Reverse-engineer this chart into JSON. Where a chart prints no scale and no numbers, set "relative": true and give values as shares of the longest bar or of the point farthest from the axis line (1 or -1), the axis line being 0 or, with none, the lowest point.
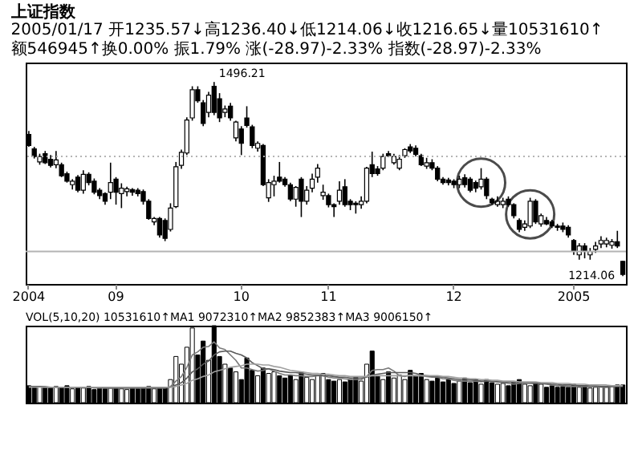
{
  "chart_data": [
    {
      "type": "candlestick",
      "title": "上证指数",
      "subtitle": "2005/01/17 开1235.57↓高1236.40↓低1214.06↓收1216.65↓量10531610↑额546945↑换0.00% 振1.79% 涨(-28.97)-2.33% 指数(-28.97)-2.33%",
      "categories": [
        "2004",
        null,
        null,
        null,
        null,
        null,
        null,
        null,
        null,
        null,
        null,
        null,
        null,
        null,
        null,
        null,
        "09",
        null,
        null,
        null,
        null,
        null,
        null,
        null,
        null,
        null,
        null,
        null,
        null,
        null,
        null,
        null,
        null,
        null,
        null,
        null,
        null,
        null,
        null,
        "10",
        null,
        null,
        null,
        null,
        null,
        null,
        null,
        null,
        null,
        null,
        null,
        null,
        null,
        null,
        null,
        "11",
        null,
        null,
        null,
        null,
        null,
        null,
        null,
        null,
        null,
        null,
        null,
        null,
        null,
        null,
        null,
        null,
        null,
        null,
        null,
        null,
        null,
        null,
        "12",
        null,
        null,
        null,
        null,
        null,
        null,
        null,
        null,
        null,
        null,
        null,
        null,
        null,
        null,
        null,
        null,
        null,
        null,
        null,
        null,
        null,
        "2005",
        null,
        null,
        null,
        null,
        null,
        null,
        null,
        null,
        null
      ],
      "ohlc": [
        [
          1420,
          1425,
          1402,
          1404
        ],
        [
          1399,
          1402,
          1385,
          1388
        ],
        [
          1380,
          1392,
          1376,
          1388
        ],
        [
          1392,
          1396,
          1377,
          1379
        ],
        [
          1384,
          1390,
          1372,
          1375
        ],
        [
          1376,
          1396,
          1371,
          1383
        ],
        [
          1376,
          1379,
          1358,
          1360
        ],
        [
          1363,
          1366,
          1350,
          1352
        ],
        [
          1347,
          1355,
          1340,
          1352
        ],
        [
          1358,
          1361,
          1336,
          1339
        ],
        [
          1339,
          1368,
          1334,
          1362
        ],
        [
          1362,
          1365,
          1346,
          1350
        ],
        [
          1352,
          1356,
          1333,
          1336
        ],
        [
          1339,
          1342,
          1326,
          1331
        ],
        [
          1334,
          1336,
          1318,
          1323
        ],
        [
          1336,
          1379,
          1326,
          1350
        ],
        [
          1355,
          1358,
          1318,
          1336
        ],
        [
          1334,
          1349,
          1313,
          1342
        ],
        [
          1337,
          1344,
          1330,
          1341
        ],
        [
          1340,
          1342,
          1331,
          1336
        ],
        [
          1339,
          1342,
          1330,
          1334
        ],
        [
          1337,
          1340,
          1318,
          1323
        ],
        [
          1323,
          1326,
          1296,
          1298
        ],
        [
          1293,
          1300,
          1288,
          1298
        ],
        [
          1298,
          1300,
          1270,
          1274
        ],
        [
          1295,
          1298,
          1265,
          1269
        ],
        [
          1282,
          1320,
          1279,
          1313
        ],
        [
          1315,
          1380,
          1313,
          1373
        ],
        [
          1375,
          1398,
          1370,
          1394
        ],
        [
          1393,
          1445,
          1390,
          1441
        ],
        [
          1444,
          1490,
          1440,
          1485
        ],
        [
          1485,
          1490,
          1466,
          1469
        ],
        [
          1466,
          1470,
          1432,
          1436
        ],
        [
          1452,
          1482,
          1445,
          1477
        ],
        [
          1490,
          1496.21,
          1448,
          1452
        ],
        [
          1472,
          1480,
          1438,
          1444
        ],
        [
          1452,
          1462,
          1445,
          1457
        ],
        [
          1461,
          1466,
          1440,
          1444
        ],
        [
          1415,
          1440,
          1410,
          1438
        ],
        [
          1428,
          1432,
          1390,
          1407
        ],
        [
          1444,
          1461,
          1430,
          1433
        ],
        [
          1431,
          1434,
          1400,
          1404
        ],
        [
          1400,
          1410,
          1395,
          1407
        ],
        [
          1404,
          1406,
          1345,
          1347
        ],
        [
          1328,
          1355,
          1322,
          1350
        ],
        [
          1347,
          1360,
          1330,
          1352
        ],
        [
          1358,
          1380,
          1350,
          1352
        ],
        [
          1355,
          1358,
          1344,
          1347
        ],
        [
          1347,
          1350,
          1323,
          1326
        ],
        [
          1326,
          1345,
          1315,
          1343
        ],
        [
          1355,
          1358,
          1300,
          1323
        ],
        [
          1323,
          1345,
          1318,
          1339
        ],
        [
          1342,
          1363,
          1336,
          1355
        ],
        [
          1358,
          1377,
          1350,
          1371
        ],
        [
          1331,
          1347,
          1325,
          1336
        ],
        [
          1331,
          1334,
          1314,
          1318
        ],
        [
          1318,
          1320,
          1300,
          1315
        ],
        [
          1323,
          1352,
          1318,
          1339
        ],
        [
          1344,
          1355,
          1315,
          1318
        ],
        [
          1323,
          1326,
          1310,
          1318
        ],
        [
          1320,
          1323,
          1305,
          1318
        ],
        [
          1318,
          1330,
          1312,
          1323
        ],
        [
          1323,
          1373,
          1320,
          1371
        ],
        [
          1376,
          1395,
          1358,
          1363
        ],
        [
          1370,
          1374,
          1360,
          1363
        ],
        [
          1371,
          1392,
          1368,
          1388
        ],
        [
          1392,
          1396,
          1387,
          1389
        ],
        [
          1379,
          1392,
          1376,
          1388
        ],
        [
          1371,
          1390,
          1368,
          1384
        ],
        [
          1389,
          1400,
          1386,
          1398
        ],
        [
          1402,
          1406,
          1393,
          1396
        ],
        [
          1400,
          1404,
          1388,
          1391
        ],
        [
          1389,
          1392,
          1374,
          1376
        ],
        [
          1374,
          1386,
          1370,
          1379
        ],
        [
          1379,
          1384,
          1368,
          1371
        ],
        [
          1371,
          1374,
          1352,
          1355
        ],
        [
          1355,
          1358,
          1347,
          1350
        ],
        [
          1354,
          1357,
          1346,
          1350
        ],
        [
          1352,
          1355,
          1342,
          1347
        ],
        [
          1347,
          1360,
          1342,
          1355
        ],
        [
          1357,
          1362,
          1343,
          1347
        ],
        [
          1355,
          1358,
          1336,
          1339
        ],
        [
          1350,
          1353,
          1336,
          1342
        ],
        [
          1344,
          1371,
          1340,
          1355
        ],
        [
          1355,
          1358,
          1326,
          1331
        ],
        [
          1326,
          1328,
          1318,
          1321
        ],
        [
          1318,
          1330,
          1315,
          1323
        ],
        [
          1318,
          1328,
          1313,
          1323
        ],
        [
          1326,
          1330,
          1315,
          1318
        ],
        [
          1318,
          1320,
          1298,
          1302
        ],
        [
          1295,
          1298,
          1278,
          1282
        ],
        [
          1285,
          1295,
          1280,
          1290
        ],
        [
          1287,
          1328,
          1284,
          1323
        ],
        [
          1323,
          1326,
          1290,
          1293
        ],
        [
          1290,
          1305,
          1286,
          1302
        ],
        [
          1295,
          1300,
          1288,
          1290
        ],
        [
          1293,
          1296,
          1284,
          1287
        ],
        [
          1287,
          1290,
          1280,
          1285
        ],
        [
          1287,
          1292,
          1278,
          1282
        ],
        [
          1285,
          1288,
          1270,
          1274
        ],
        [
          1266,
          1268,
          1245,
          1250
        ],
        [
          1245,
          1262,
          1238,
          1258
        ],
        [
          1258,
          1262,
          1240,
          1250
        ],
        [
          1245,
          1255,
          1238,
          1250
        ],
        [
          1253,
          1264,
          1248,
          1258
        ],
        [
          1261,
          1272,
          1255,
          1266
        ],
        [
          1261,
          1270,
          1256,
          1266
        ],
        [
          1259,
          1268,
          1254,
          1264
        ],
        [
          1264,
          1280,
          1255,
          1258
        ],
        [
          1235.57,
          1236.4,
          1214.06,
          1216.65
        ]
      ],
      "ref_lines": [
        {
          "axis": "y",
          "value": 1388,
          "color": "#b4b4b4",
          "line_style": "dotted"
        },
        {
          "axis": "y",
          "value": 1250,
          "color": "#b4b4b4",
          "line_style": "solid"
        }
      ],
      "annotations": [
        "1496.21",
        "1214.06"
      ],
      "tick_labels": "x"
    },
    {
      "type": "bar",
      "title": "VOL(5,10,20) 10531610↑MA1 9072310↑MA2 9852383↑MA3 9006150↑",
      "relative": true,
      "tick_labels": false,
      "categories": [
        "2004",
        null,
        null,
        null,
        null,
        null,
        null,
        null,
        null,
        null,
        null,
        null,
        null,
        null,
        null,
        null,
        "09",
        null,
        null,
        null,
        null,
        null,
        null,
        null,
        null,
        null,
        null,
        null,
        null,
        null,
        null,
        null,
        null,
        null,
        null,
        null,
        null,
        null,
        null,
        "10",
        null,
        null,
        null,
        null,
        null,
        null,
        null,
        null,
        null,
        null,
        null,
        null,
        null,
        null,
        null,
        "11",
        null,
        null,
        null,
        null,
        null,
        null,
        null,
        null,
        null,
        null,
        null,
        null,
        null,
        null,
        null,
        null,
        null,
        null,
        null,
        null,
        null,
        null,
        "12",
        null,
        null,
        null,
        null,
        null,
        null,
        null,
        null,
        null,
        null,
        null,
        null,
        null,
        null,
        null,
        null,
        null,
        null,
        null,
        null,
        null,
        "2005",
        null,
        null,
        null,
        null,
        null,
        null,
        null,
        null,
        null
      ],
      "series": [
        {
          "type": "bar",
          "values": [
            0.22,
            0.2,
            0.21,
            0.2,
            0.19,
            0.21,
            0.2,
            0.22,
            0.18,
            0.2,
            0.19,
            0.21,
            0.17,
            0.2,
            0.18,
            0.19,
            0.2,
            0.18,
            0.17,
            0.19,
            0.18,
            0.2,
            0.21,
            0.18,
            0.2,
            0.19,
            0.3,
            0.6,
            0.5,
            0.72,
            0.97,
            0.62,
            0.8,
            0.55,
            1,
            0.6,
            0.5,
            0.45,
            0.4,
            0.3,
            0.58,
            0.42,
            0.35,
            0.45,
            0.38,
            0.4,
            0.35,
            0.32,
            0.36,
            0.3,
            0.4,
            0.33,
            0.3,
            0.35,
            0.38,
            0.3,
            0.28,
            0.3,
            0.27,
            0.3,
            0.33,
            0.28,
            0.5,
            0.67,
            0.35,
            0.3,
            0.4,
            0.32,
            0.36,
            0.3,
            0.42,
            0.35,
            0.38,
            0.3,
            0.28,
            0.32,
            0.27,
            0.3,
            0.25,
            0.28,
            0.32,
            0.26,
            0.3,
            0.24,
            0.3,
            0.26,
            0.24,
            0.25,
            0.22,
            0.26,
            0.3,
            0.24,
            0.22,
            0.26,
            0.24,
            0.2,
            0.22,
            0.2,
            0.21,
            0.2,
            0.24,
            0.2,
            0.22,
            0.19,
            0.2,
            0.21,
            0.2,
            0.22,
            0.23,
            0.23
          ],
          "colors": [
            "#000000",
            "#000000",
            "#ffffff",
            "#000000",
            "#000000",
            "#ffffff",
            "#000000",
            "#000000",
            "#ffffff",
            "#000000",
            "#ffffff",
            "#000000",
            "#000000",
            "#000000",
            "#000000",
            "#ffffff",
            "#000000",
            "#ffffff",
            "#ffffff",
            "#000000",
            "#000000",
            "#000000",
            "#000000",
            "#ffffff",
            "#000000",
            "#000000",
            "#ffffff",
            "#ffffff",
            "#ffffff",
            "#ffffff",
            "#ffffff",
            "#000000",
            "#000000",
            "#ffffff",
            "#000000",
            "#000000",
            "#ffffff",
            "#000000",
            "#ffffff",
            "#000000",
            "#000000",
            "#000000",
            "#ffffff",
            "#000000",
            "#ffffff",
            "#ffffff",
            "#000000",
            "#000000",
            "#000000",
            "#ffffff",
            "#000000",
            "#ffffff",
            "#ffffff",
            "#ffffff",
            "#ffffff",
            "#000000",
            "#000000",
            "#ffffff",
            "#000000",
            "#000000",
            "#000000",
            "#ffffff",
            "#ffffff",
            "#000000",
            "#000000",
            "#ffffff",
            "#000000",
            "#ffffff",
            "#ffffff",
            "#ffffff",
            "#000000",
            "#000000",
            "#000000",
            "#ffffff",
            "#000000",
            "#000000",
            "#000000",
            "#000000",
            "#000000",
            "#ffffff",
            "#000000",
            "#000000",
            "#000000",
            "#ffffff",
            "#000000",
            "#000000",
            "#ffffff",
            "#ffffff",
            "#000000",
            "#000000",
            "#000000",
            "#ffffff",
            "#ffffff",
            "#000000",
            "#ffffff",
            "#000000",
            "#000000",
            "#000000",
            "#000000",
            "#000000",
            "#000000",
            "#ffffff",
            "#000000",
            "#ffffff",
            "#ffffff",
            "#ffffff",
            "#ffffff",
            "#ffffff",
            "#000000",
            "#000000"
          ]
        },
        {
          "type": "line",
          "color": "#7a7a7a",
          "values": [
            0.21,
            0.21,
            0.21,
            0.21,
            0.2,
            0.2,
            0.2,
            0.2,
            0.2,
            0.2,
            0.2,
            0.2,
            0.19,
            0.19,
            0.19,
            0.19,
            0.19,
            0.19,
            0.19,
            0.19,
            0.19,
            0.19,
            0.19,
            0.19,
            0.19,
            0.19,
            0.21,
            0.28,
            0.34,
            0.46,
            0.62,
            0.66,
            0.72,
            0.73,
            0.79,
            0.71,
            0.69,
            0.62,
            0.55,
            0.45,
            0.45,
            0.43,
            0.41,
            0.42,
            0.44,
            0.41,
            0.38,
            0.36,
            0.36,
            0.35,
            0.35,
            0.34,
            0.34,
            0.35,
            0.35,
            0.33,
            0.32,
            0.32,
            0.31,
            0.3,
            0.3,
            0.3,
            0.34,
            0.42,
            0.43,
            0.43,
            0.45,
            0.41,
            0.35,
            0.34,
            0.36,
            0.35,
            0.35,
            0.34,
            0.33,
            0.33,
            0.31,
            0.31,
            0.29,
            0.28,
            0.28,
            0.28,
            0.28,
            0.27,
            0.28,
            0.28,
            0.27,
            0.26,
            0.25,
            0.24,
            0.25,
            0.25,
            0.25,
            0.25,
            0.25,
            0.24,
            0.23,
            0.22,
            0.22,
            0.21,
            0.21,
            0.21,
            0.21,
            0.21,
            0.21,
            0.2,
            0.2,
            0.21,
            0.22,
            0.22
          ]
        },
        {
          "type": "line",
          "color": "#5a5a5a",
          "values": [
            0.21,
            0.21,
            0.21,
            0.2,
            0.2,
            0.2,
            0.2,
            0.2,
            0.2,
            0.2,
            0.2,
            0.2,
            0.2,
            0.2,
            0.19,
            0.19,
            0.19,
            0.19,
            0.19,
            0.19,
            0.19,
            0.19,
            0.19,
            0.19,
            0.19,
            0.19,
            0.2,
            0.23,
            0.26,
            0.32,
            0.4,
            0.44,
            0.5,
            0.54,
            0.62,
            0.66,
            0.67,
            0.67,
            0.64,
            0.62,
            0.58,
            0.52,
            0.48,
            0.44,
            0.44,
            0.43,
            0.41,
            0.4,
            0.39,
            0.39,
            0.38,
            0.37,
            0.36,
            0.36,
            0.35,
            0.35,
            0.34,
            0.33,
            0.33,
            0.32,
            0.32,
            0.32,
            0.33,
            0.36,
            0.37,
            0.38,
            0.39,
            0.39,
            0.39,
            0.39,
            0.39,
            0.38,
            0.36,
            0.35,
            0.34,
            0.34,
            0.33,
            0.32,
            0.31,
            0.3,
            0.3,
            0.3,
            0.29,
            0.28,
            0.28,
            0.28,
            0.27,
            0.27,
            0.27,
            0.26,
            0.26,
            0.26,
            0.26,
            0.25,
            0.25,
            0.25,
            0.24,
            0.24,
            0.23,
            0.23,
            0.23,
            0.22,
            0.22,
            0.22,
            0.22,
            0.21,
            0.21,
            0.21,
            0.21,
            0.21
          ]
        },
        {
          "type": "line",
          "color": "#a0a0a0",
          "values": [
            0.2,
            0.2,
            0.2,
            0.2,
            0.2,
            0.2,
            0.2,
            0.2,
            0.2,
            0.2,
            0.2,
            0.2,
            0.2,
            0.2,
            0.2,
            0.2,
            0.2,
            0.2,
            0.2,
            0.2,
            0.2,
            0.2,
            0.2,
            0.2,
            0.2,
            0.2,
            0.2,
            0.21,
            0.23,
            0.25,
            0.29,
            0.31,
            0.34,
            0.36,
            0.4,
            0.42,
            0.44,
            0.46,
            0.47,
            0.48,
            0.5,
            0.5,
            0.5,
            0.49,
            0.49,
            0.47,
            0.46,
            0.44,
            0.42,
            0.41,
            0.4,
            0.39,
            0.38,
            0.38,
            0.37,
            0.37,
            0.36,
            0.35,
            0.35,
            0.34,
            0.34,
            0.34,
            0.34,
            0.35,
            0.35,
            0.35,
            0.35,
            0.35,
            0.35,
            0.35,
            0.35,
            0.35,
            0.35,
            0.35,
            0.35,
            0.35,
            0.34,
            0.34,
            0.33,
            0.32,
            0.32,
            0.31,
            0.31,
            0.3,
            0.3,
            0.29,
            0.29,
            0.28,
            0.28,
            0.28,
            0.27,
            0.27,
            0.27,
            0.27,
            0.26,
            0.26,
            0.26,
            0.25,
            0.25,
            0.25,
            0.24,
            0.24,
            0.24,
            0.23,
            0.23,
            0.23,
            0.23,
            0.22,
            0.22,
            0.22
          ]
        }
      ]
    }
  ]
}
